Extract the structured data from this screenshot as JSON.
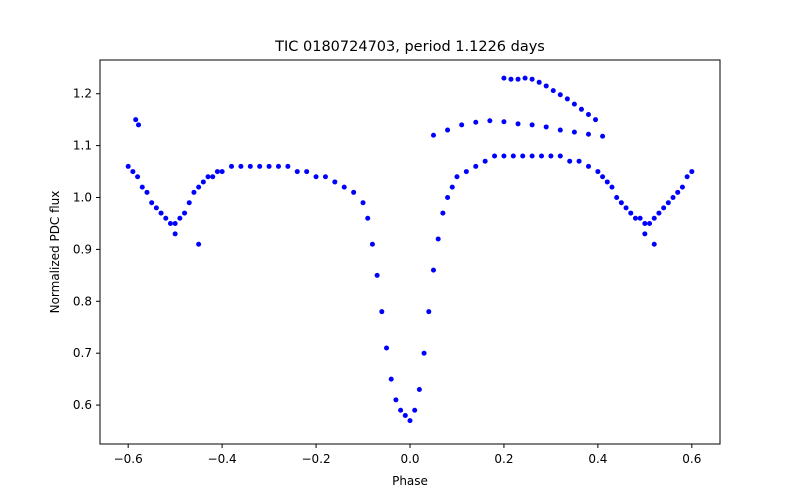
{
  "chart_data": {
    "type": "scatter",
    "title": "TIC 0180724703, period 1.1226 days",
    "xlabel": "Phase",
    "ylabel": "Normalized PDC flux",
    "xlim": [
      -0.66,
      0.66
    ],
    "ylim": [
      0.525,
      1.265
    ],
    "xticks": [
      -0.6,
      -0.4,
      -0.2,
      0.0,
      0.2,
      0.4,
      0.6
    ],
    "xtick_labels": [
      "−0.6",
      "−0.4",
      "−0.2",
      "0.0",
      "0.2",
      "0.4",
      "0.6"
    ],
    "yticks": [
      0.6,
      0.7,
      0.8,
      0.9,
      1.0,
      1.1,
      1.2
    ],
    "ytick_labels": [
      "0.6",
      "0.7",
      "0.8",
      "0.9",
      "1.0",
      "1.1",
      "1.2"
    ],
    "grid": false,
    "marker_color": "#0000ff",
    "series": [
      {
        "x": [
          -0.6,
          -0.59,
          -0.58,
          -0.57,
          -0.56,
          -0.55,
          -0.54,
          -0.53,
          -0.52,
          -0.51,
          -0.5,
          -0.49,
          -0.48,
          -0.47,
          -0.46,
          -0.45,
          -0.44,
          -0.43,
          -0.42,
          -0.41,
          -0.4,
          -0.38,
          -0.36,
          -0.34,
          -0.32,
          -0.3,
          -0.28,
          -0.26,
          -0.24,
          -0.22,
          -0.2,
          -0.18,
          -0.16,
          -0.14,
          -0.12,
          -0.1,
          -0.09,
          -0.08,
          -0.07,
          -0.06,
          -0.05,
          -0.04,
          -0.03,
          -0.02,
          -0.01,
          0.0,
          0.01,
          0.02,
          0.03,
          0.04,
          0.05,
          0.06,
          0.07,
          0.08,
          0.09,
          0.1,
          0.12,
          0.14,
          0.16,
          0.18,
          0.2,
          0.22,
          0.24,
          0.26,
          0.28,
          0.3,
          0.32,
          0.34,
          0.36,
          0.38,
          0.4,
          0.41,
          0.42,
          0.43,
          0.44,
          0.45,
          0.46,
          0.47,
          0.48,
          0.49,
          0.5,
          0.51,
          0.52,
          0.53,
          0.54,
          0.55,
          0.56,
          0.57,
          0.58,
          0.59,
          0.6
        ],
        "y": [
          1.06,
          1.05,
          1.04,
          1.02,
          1.01,
          0.99,
          0.98,
          0.97,
          0.96,
          0.95,
          0.95,
          0.96,
          0.97,
          0.99,
          1.01,
          1.02,
          1.03,
          1.04,
          1.04,
          1.05,
          1.05,
          1.06,
          1.06,
          1.06,
          1.06,
          1.06,
          1.06,
          1.06,
          1.05,
          1.05,
          1.04,
          1.04,
          1.03,
          1.02,
          1.01,
          0.99,
          0.96,
          0.91,
          0.85,
          0.78,
          0.71,
          0.65,
          0.61,
          0.59,
          0.58,
          0.57,
          0.59,
          0.63,
          0.7,
          0.78,
          0.86,
          0.92,
          0.97,
          1.0,
          1.02,
          1.04,
          1.05,
          1.06,
          1.07,
          1.08,
          1.08,
          1.08,
          1.08,
          1.08,
          1.08,
          1.08,
          1.08,
          1.07,
          1.07,
          1.06,
          1.05,
          1.04,
          1.03,
          1.02,
          1.0,
          0.99,
          0.98,
          0.97,
          0.96,
          0.96,
          0.95,
          0.95,
          0.96,
          0.97,
          0.98,
          0.99,
          1.0,
          1.01,
          1.02,
          1.04,
          1.05
        ]
      }
    ],
    "outliers": {
      "x": [
        -0.584,
        -0.578,
        0.2,
        0.215,
        0.23,
        0.245,
        0.26,
        0.275,
        0.29,
        0.305,
        0.32,
        0.335,
        0.35,
        0.365,
        0.38,
        0.395,
        0.05,
        0.08,
        0.11,
        0.14,
        0.17,
        0.2,
        0.23,
        0.26,
        0.29,
        0.32,
        0.35,
        0.38,
        0.41,
        -0.5,
        -0.45,
        0.5,
        0.52
      ],
      "y": [
        1.15,
        1.14,
        1.23,
        1.228,
        1.228,
        1.23,
        1.228,
        1.222,
        1.215,
        1.206,
        1.198,
        1.19,
        1.18,
        1.17,
        1.16,
        1.15,
        1.12,
        1.13,
        1.14,
        1.145,
        1.148,
        1.146,
        1.142,
        1.14,
        1.136,
        1.13,
        1.126,
        1.122,
        1.118,
        0.93,
        0.91,
        0.93,
        0.91
      ]
    }
  }
}
